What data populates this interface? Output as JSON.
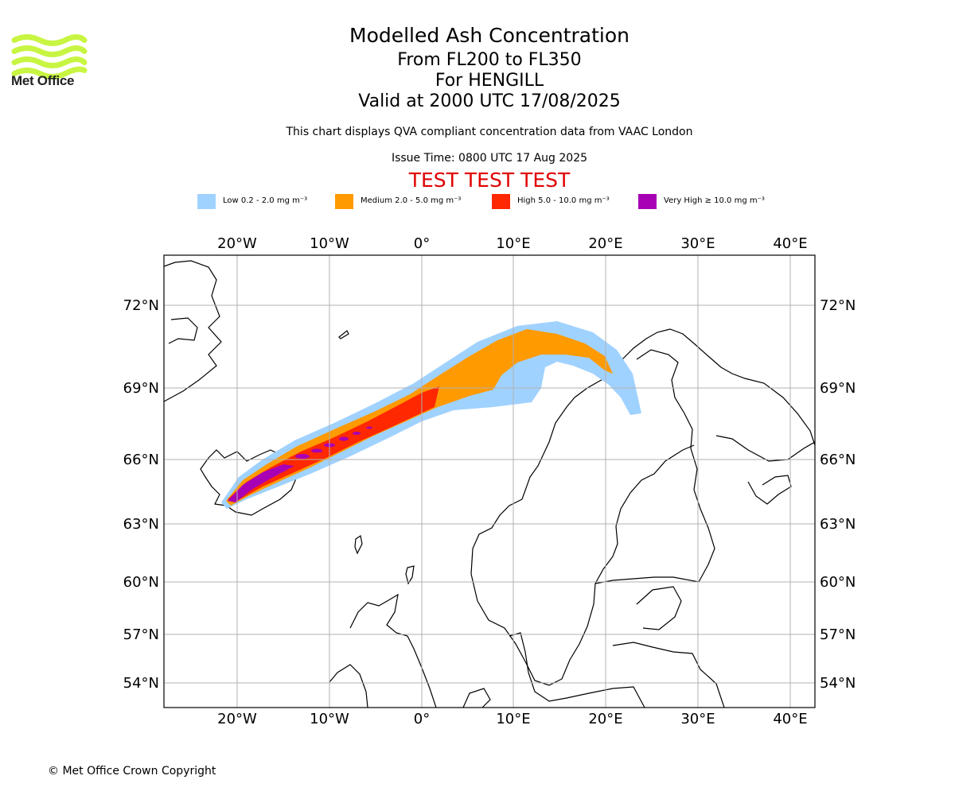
{
  "logo": {
    "name": "Met Office",
    "color": "#c8f542"
  },
  "header": {
    "title": "Modelled Ash Concentration",
    "levels": "From FL200 to FL350",
    "volcano": "For HENGILL",
    "valid": "Valid at 2000 UTC 17/08/2025",
    "compliance": "This chart displays QVA compliant concentration data from VAAC London",
    "issue": "Issue Time: 0800 UTC 17 Aug 2025",
    "test_banner": "TEST TEST TEST"
  },
  "legend": [
    {
      "label": "Low 0.2 - 2.0 mg m⁻³",
      "color": "#a0d2ff"
    },
    {
      "label": "Medium 2.0 - 5.0 mg m⁻³",
      "color": "#ff9a00"
    },
    {
      "label": "High 5.0 - 10.0 mg m⁻³",
      "color": "#ff2800"
    },
    {
      "label": "Very High ≥ 10.0 mg m⁻³",
      "color": "#a800b4"
    }
  ],
  "map": {
    "lon_labels": [
      "20°W",
      "10°W",
      "0°",
      "10°E",
      "20°E",
      "30°E",
      "40°E"
    ],
    "lat_labels": [
      "72°N",
      "69°N",
      "66°N",
      "63°N",
      "60°N",
      "57°N",
      "54°N"
    ],
    "grid_color": "#b0b0b0"
  },
  "footer": {
    "copyright": "© Met Office Crown Copyright"
  }
}
